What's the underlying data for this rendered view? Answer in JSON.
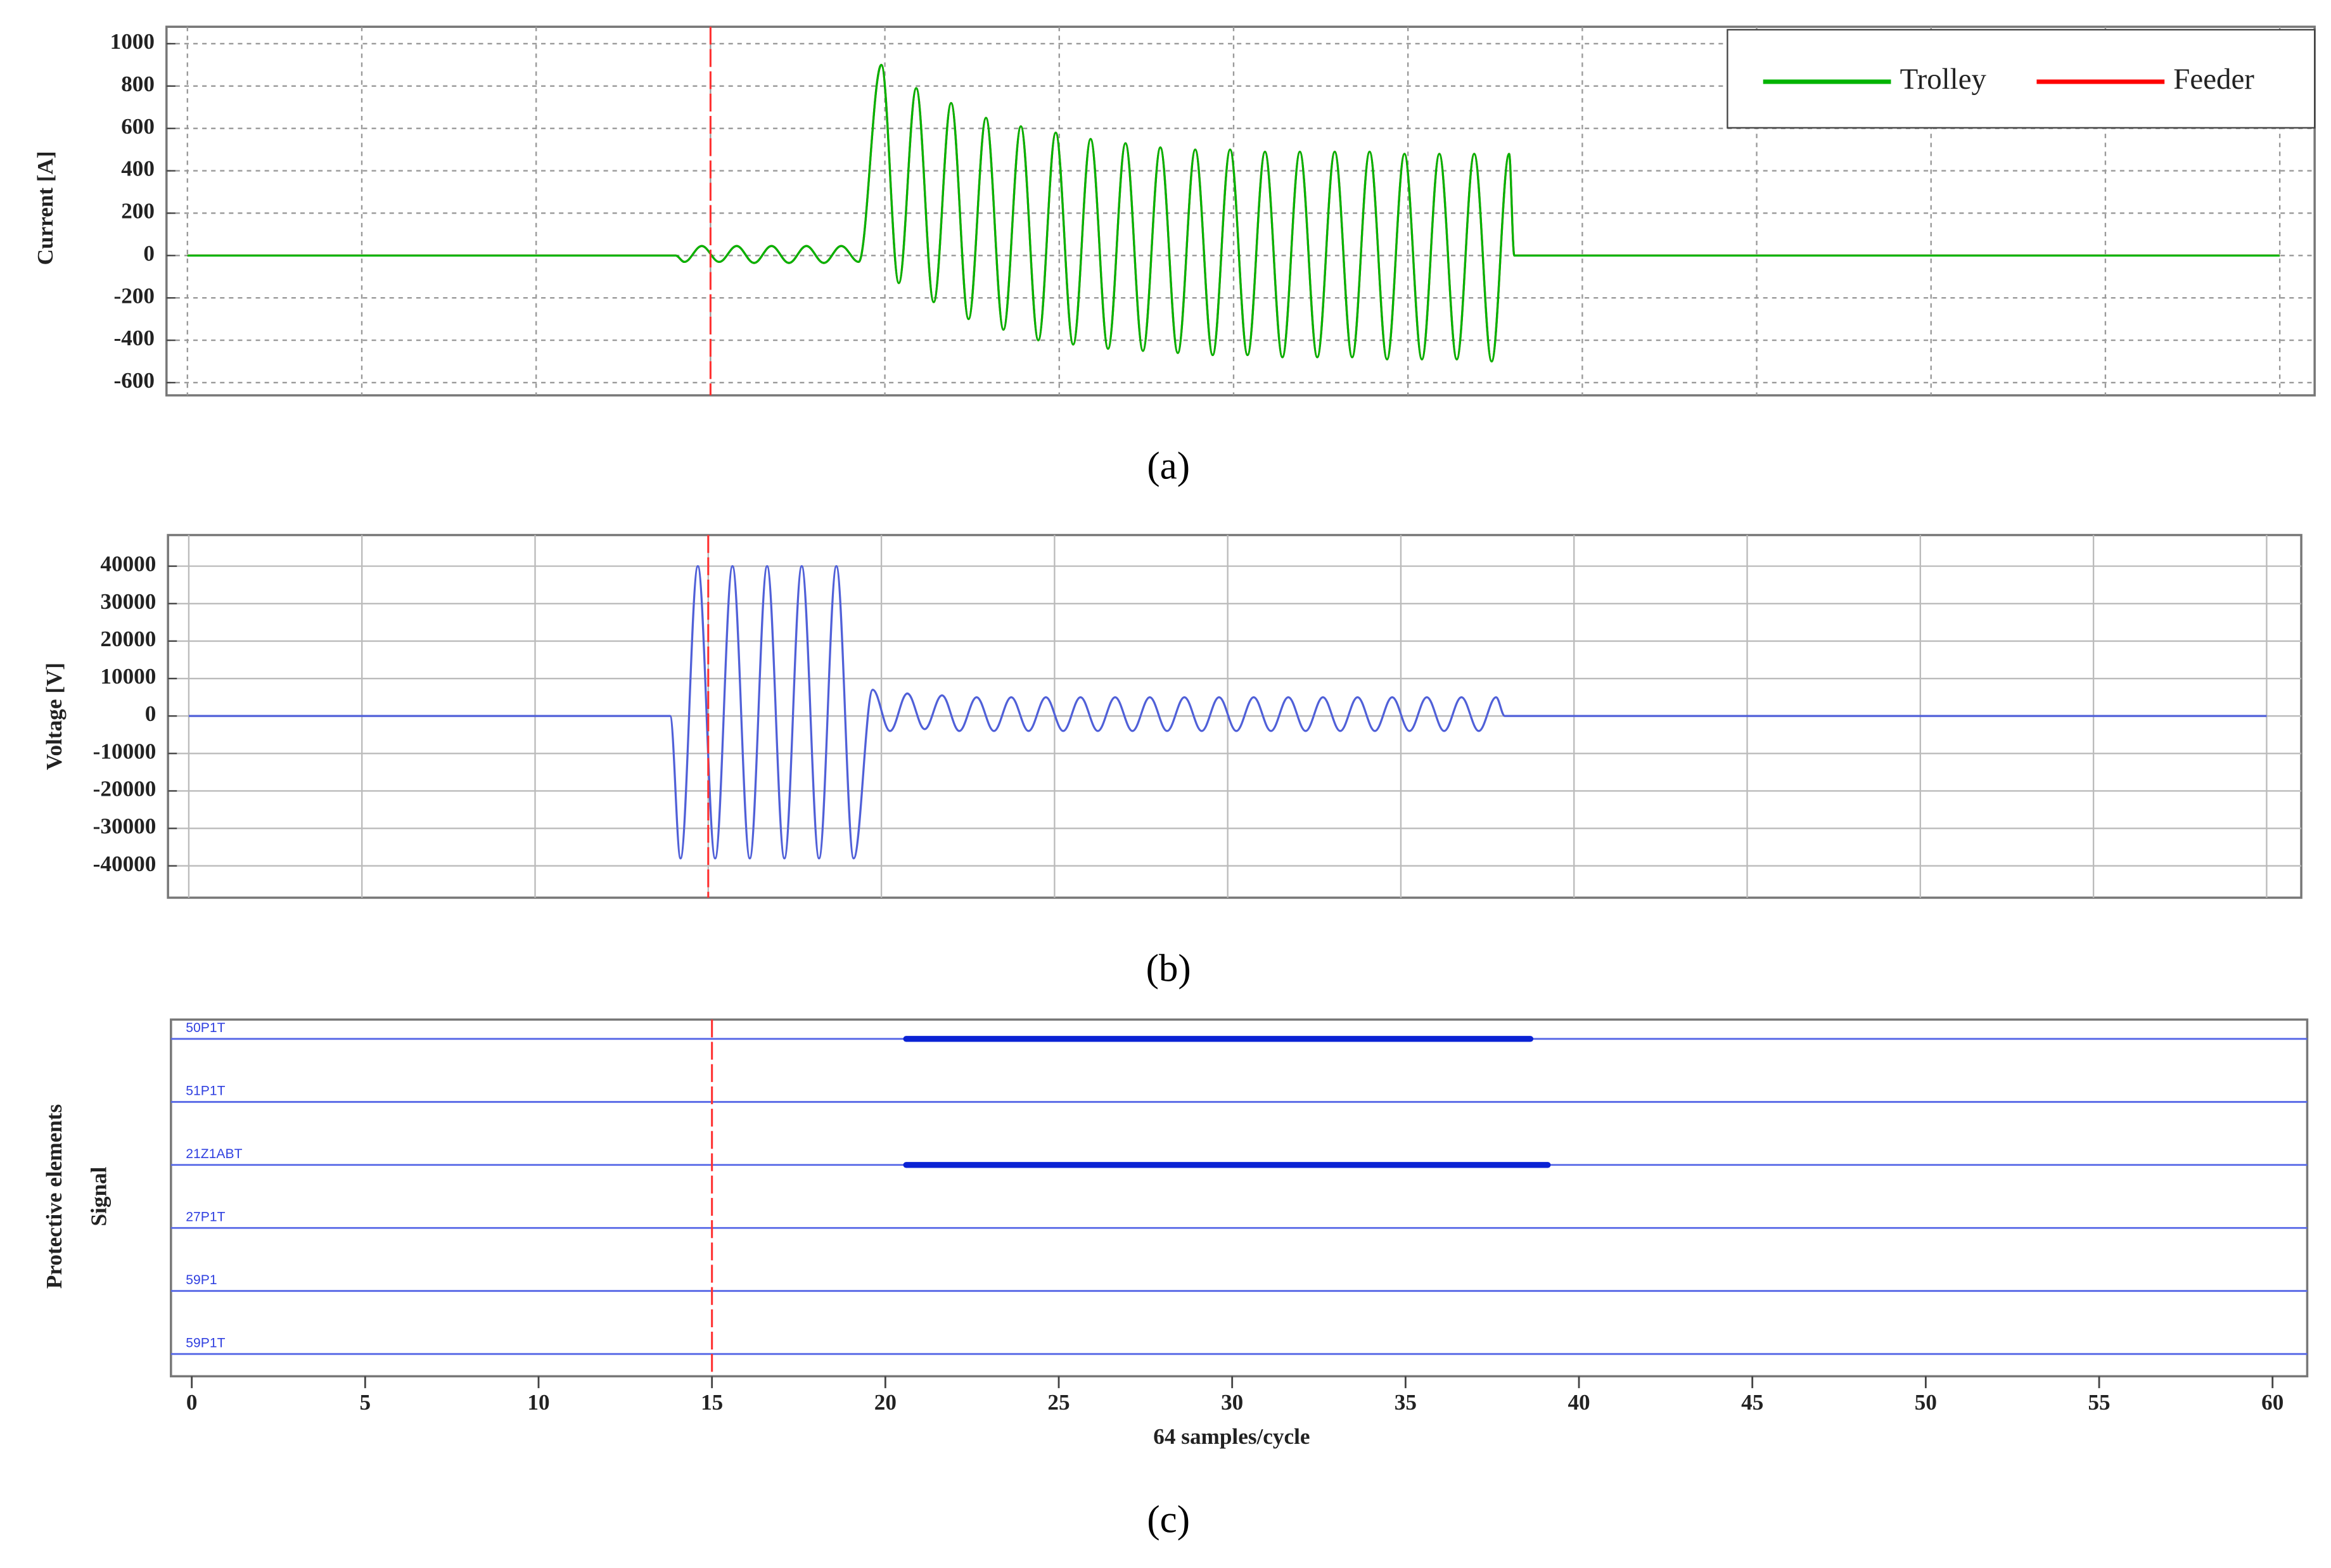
{
  "chart_data": [
    {
      "type": "line",
      "ylabel": "Current  [A]",
      "caption": "(a)",
      "xlim": [
        -0.6,
        61
      ],
      "ylim": [
        -660,
        1080
      ],
      "xticks": [
        0,
        5,
        10,
        15,
        20,
        25,
        30,
        35,
        40,
        45,
        50,
        55,
        60
      ],
      "yticks": [
        -600,
        -400,
        -200,
        0,
        200,
        400,
        600,
        800,
        1000
      ],
      "grid": true,
      "legend": "upper right",
      "cursor": 15,
      "x": [
        0,
        14,
        14.25,
        14.75,
        15.25,
        15.75,
        16.25,
        16.75,
        17.25,
        17.75,
        18.25,
        18.75,
        19.25,
        19.9,
        20.4,
        20.9,
        21.4,
        21.9,
        22.4,
        22.9,
        23.4,
        23.9,
        24.4,
        24.9,
        25.4,
        25.9,
        26.4,
        26.9,
        27.4,
        27.9,
        28.4,
        28.9,
        29.4,
        29.9,
        30.4,
        30.9,
        31.4,
        31.9,
        32.4,
        32.9,
        33.4,
        33.9,
        34.4,
        34.9,
        35.4,
        35.9,
        36.4,
        36.9,
        37.4,
        37.9,
        38.05,
        60
      ],
      "series": [
        {
          "name": "Feeder",
          "color": "#ff0000",
          "values": [
            0,
            0,
            -30,
            45,
            -30,
            45,
            -35,
            45,
            -35,
            45,
            -35,
            45,
            -30,
            900,
            -130,
            790,
            -220,
            720,
            -300,
            650,
            -350,
            610,
            -400,
            580,
            -420,
            550,
            -440,
            530,
            -450,
            510,
            -460,
            500,
            -470,
            500,
            -470,
            490,
            -480,
            490,
            -480,
            490,
            -480,
            490,
            -490,
            480,
            -490,
            480,
            -490,
            480,
            -500,
            480,
            0,
            0
          ]
        },
        {
          "name": "Trolley",
          "color": "#00b400",
          "values": [
            0,
            0,
            -30,
            45,
            -30,
            45,
            -35,
            45,
            -35,
            45,
            -35,
            45,
            -30,
            900,
            -130,
            790,
            -220,
            720,
            -300,
            650,
            -350,
            610,
            -400,
            580,
            -420,
            550,
            -440,
            530,
            -450,
            510,
            -460,
            500,
            -470,
            500,
            -470,
            490,
            -480,
            490,
            -480,
            490,
            -480,
            490,
            -490,
            480,
            -490,
            480,
            -490,
            480,
            -500,
            480,
            0,
            0
          ]
        }
      ]
    },
    {
      "type": "line",
      "ylabel": "Voltage  [V]",
      "caption": "(b)",
      "xlim": [
        -0.6,
        61
      ],
      "ylim": [
        -48500,
        48300
      ],
      "xticks": [
        0,
        5,
        10,
        15,
        20,
        25,
        30,
        35,
        40,
        45,
        50,
        55,
        60
      ],
      "yticks": [
        -40000,
        -30000,
        -20000,
        -10000,
        0,
        10000,
        20000,
        30000,
        40000
      ],
      "grid": true,
      "cursor": 15,
      "x": [
        0,
        13.9,
        14.2,
        14.7,
        15.2,
        15.7,
        16.2,
        16.7,
        17.2,
        17.7,
        18.2,
        18.7,
        19.2,
        19.75,
        20.25,
        20.75,
        21.25,
        21.75,
        22.25,
        22.75,
        23.25,
        23.75,
        24.25,
        24.75,
        25.25,
        25.75,
        26.25,
        26.75,
        27.25,
        27.75,
        28.25,
        28.75,
        29.25,
        29.75,
        30.25,
        30.75,
        31.25,
        31.75,
        32.25,
        32.75,
        33.25,
        33.75,
        34.25,
        34.75,
        35.25,
        35.75,
        36.25,
        36.75,
        37.25,
        37.75,
        38,
        60
      ],
      "series": [
        {
          "name": "Voltage",
          "color": "#5060d8",
          "values": [
            0,
            0,
            -38000,
            40000,
            -38000,
            40000,
            -38000,
            40000,
            -38000,
            40000,
            -38000,
            40000,
            -38000,
            7000,
            -4000,
            6000,
            -3500,
            5500,
            -4000,
            5000,
            -4000,
            5000,
            -4000,
            5000,
            -4000,
            5000,
            -4000,
            5000,
            -4000,
            5000,
            -4000,
            5000,
            -4000,
            5000,
            -4000,
            5000,
            -4000,
            5000,
            -4000,
            5000,
            -4000,
            5000,
            -4000,
            5000,
            -4000,
            5000,
            -4000,
            5000,
            -4000,
            5000,
            0,
            0
          ]
        }
      ]
    },
    {
      "type": "digital",
      "ylabel": [
        "Protective elements",
        "Signal"
      ],
      "caption": "(c)",
      "xlabel": "64 samples/cycle",
      "xlim": [
        -0.6,
        61
      ],
      "xticks": [
        0,
        5,
        10,
        15,
        20,
        25,
        30,
        35,
        40,
        45,
        50,
        55,
        60
      ],
      "grid": false,
      "cursor": 15,
      "signals": [
        {
          "name": "50P1T",
          "active": [
            [
              20.6,
              38.6
            ]
          ]
        },
        {
          "name": "51P1T",
          "active": []
        },
        {
          "name": "21Z1ABT",
          "active": [
            [
              20.6,
              39.1
            ]
          ]
        },
        {
          "name": "27P1T",
          "active": []
        },
        {
          "name": "59P1",
          "active": []
        },
        {
          "name": "59P1T",
          "active": []
        }
      ]
    }
  ]
}
